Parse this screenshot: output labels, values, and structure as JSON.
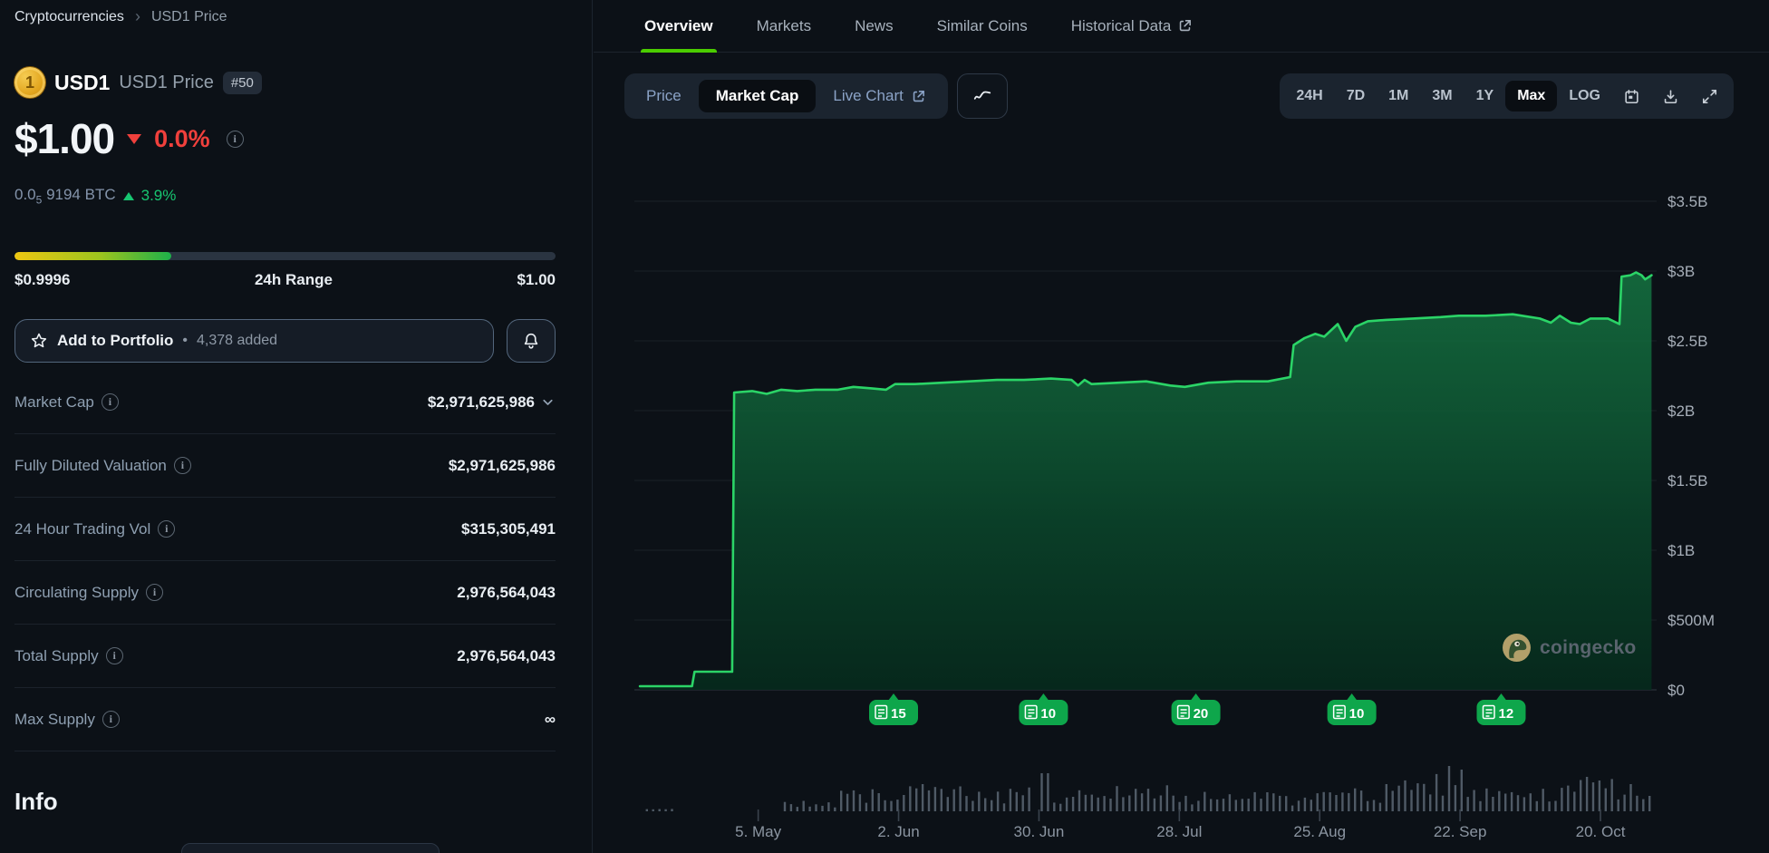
{
  "breadcrumb": {
    "root": "Cryptocurrencies",
    "separator": "›",
    "current": "USD1 Price"
  },
  "coin": {
    "symbol": "1",
    "name": "USD1",
    "page_title": "USD1 Price",
    "rank": "#50"
  },
  "price": {
    "usd": "$1.00",
    "change_pct": "0.0%",
    "btc_prefix": "0.0",
    "btc_sub": "5",
    "btc_rest": "9194 BTC",
    "btc_change_pct": "3.9%"
  },
  "range": {
    "low": "$0.9996",
    "label": "24h Range",
    "high": "$1.00",
    "fill_pct": 29
  },
  "portfolio": {
    "label": "Add to Portfolio",
    "bullet": "•",
    "added": "4,378 added"
  },
  "stats": {
    "rows": [
      {
        "label": "Market Cap",
        "value": "$2,971,625,986"
      },
      {
        "label": "Fully Diluted Valuation",
        "value": "$2,971,625,986"
      },
      {
        "label": "24 Hour Trading Vol",
        "value": "$315,305,491"
      },
      {
        "label": "Circulating Supply",
        "value": "2,976,564,043"
      },
      {
        "label": "Total Supply",
        "value": "2,976,564,043"
      },
      {
        "label": "Max Supply",
        "value": "∞"
      }
    ]
  },
  "info_heading": "Info",
  "tabs": [
    {
      "label": "Overview",
      "active": true
    },
    {
      "label": "Markets"
    },
    {
      "label": "News"
    },
    {
      "label": "Similar Coins"
    },
    {
      "label": "Historical Data",
      "external": true
    }
  ],
  "chart_toolbar": {
    "metric": [
      {
        "label": "Price"
      },
      {
        "label": "Market Cap",
        "active": true
      },
      {
        "label": "Live Chart",
        "external": true
      }
    ],
    "ranges": [
      "24H",
      "7D",
      "1M",
      "3M",
      "1Y",
      "Max",
      "LOG"
    ],
    "active_range": "Max"
  },
  "watermark": "coingecko",
  "chart_data": {
    "type": "area",
    "title": "USD1 Market Cap, Max range",
    "legend": "off",
    "grid": "on",
    "accent_color": "#2bd467",
    "event_badge_color": "#0ea64b",
    "y_axis": {
      "unit": "USD",
      "tick_labels": [
        "$3.5B",
        "$3B",
        "$2.5B",
        "$2B",
        "$1.5B",
        "$1B",
        "$500M",
        "$0"
      ],
      "tick_values": [
        3.5,
        3.0,
        2.5,
        2.0,
        1.5,
        1.0,
        0.5,
        0
      ],
      "range": [
        0,
        3.5
      ]
    },
    "x_axis": {
      "tick_labels": [
        "5. May",
        "2. Jun",
        "30. Jun",
        "28. Jul",
        "25. Aug",
        "22. Sep",
        "20. Oct"
      ],
      "tick_days": [
        24.7,
        52.7,
        80.7,
        108.7,
        136.7,
        164.7,
        192.7
      ],
      "span_days": 203
    },
    "series": [
      {
        "name": "Market Cap (billions USD)",
        "points": [
          [
            1.1,
            0.026
          ],
          [
            11.5,
            0.026
          ],
          [
            12,
            0.13
          ],
          [
            19.5,
            0.13
          ],
          [
            19.9,
            2.13
          ],
          [
            23.5,
            2.14
          ],
          [
            26.4,
            2.12
          ],
          [
            29.3,
            2.15
          ],
          [
            32.5,
            2.14
          ],
          [
            36.1,
            2.15
          ],
          [
            40.6,
            2.15
          ],
          [
            43.7,
            2.17
          ],
          [
            47.3,
            2.16
          ],
          [
            50.2,
            2.15
          ],
          [
            52,
            2.19
          ],
          [
            56,
            2.19
          ],
          [
            61.4,
            2.2
          ],
          [
            66.8,
            2.21
          ],
          [
            72.3,
            2.22
          ],
          [
            77.7,
            2.22
          ],
          [
            83.1,
            2.23
          ],
          [
            87.2,
            2.22
          ],
          [
            88.5,
            2.18
          ],
          [
            89.8,
            2.22
          ],
          [
            91.2,
            2.19
          ],
          [
            96.6,
            2.2
          ],
          [
            102.1,
            2.21
          ],
          [
            106.9,
            2.18
          ],
          [
            109.8,
            2.17
          ],
          [
            114.5,
            2.2
          ],
          [
            120.1,
            2.21
          ],
          [
            126.4,
            2.21
          ],
          [
            130.8,
            2.24
          ],
          [
            131.5,
            2.47
          ],
          [
            133.7,
            2.52
          ],
          [
            135.8,
            2.55
          ],
          [
            137.6,
            2.53
          ],
          [
            140.3,
            2.62
          ],
          [
            142,
            2.5
          ],
          [
            143.8,
            2.6
          ],
          [
            146.3,
            2.64
          ],
          [
            149.9,
            2.65
          ],
          [
            155.3,
            2.66
          ],
          [
            160.8,
            2.67
          ],
          [
            164.4,
            2.68
          ],
          [
            169.8,
            2.68
          ],
          [
            175.2,
            2.69
          ],
          [
            180.6,
            2.66
          ],
          [
            182.8,
            2.63
          ],
          [
            184.6,
            2.68
          ],
          [
            186.8,
            2.63
          ],
          [
            188.6,
            2.62
          ],
          [
            190.7,
            2.66
          ],
          [
            194.2,
            2.66
          ],
          [
            196.5,
            2.62
          ],
          [
            196.9,
            2.96
          ],
          [
            198.7,
            2.97
          ],
          [
            199.8,
            2.99
          ],
          [
            200.9,
            2.97
          ],
          [
            201.6,
            2.94
          ],
          [
            202.9,
            2.97
          ]
        ]
      }
    ],
    "events": [
      {
        "day": 51.7,
        "count": "15"
      },
      {
        "day": 81.6,
        "count": "10"
      },
      {
        "day": 112.0,
        "count": "20"
      },
      {
        "day": 143.1,
        "count": "10"
      },
      {
        "day": 172.9,
        "count": "12"
      }
    ],
    "volume": {
      "profile": [
        [
          2,
          8,
          2,
          3
        ],
        [
          30,
          41,
          4,
          12
        ],
        [
          41,
          80,
          8,
          30
        ],
        [
          82,
          110,
          8,
          30
        ],
        [
          110,
          140,
          6,
          22
        ],
        [
          140,
          152,
          8,
          26
        ],
        [
          152,
          168,
          12,
          42
        ],
        [
          168,
          185,
          8,
          28
        ],
        [
          185,
          196,
          12,
          38
        ],
        [
          196,
          203,
          10,
          26
        ]
      ],
      "spikes": [
        [
          80.7,
          73
        ],
        [
          81.9,
          42
        ],
        [
          150.5,
          30
        ],
        [
          163,
          50
        ],
        [
          165.5,
          46
        ],
        [
          190,
          38
        ],
        [
          192.5,
          34
        ],
        [
          199,
          30
        ]
      ]
    }
  }
}
